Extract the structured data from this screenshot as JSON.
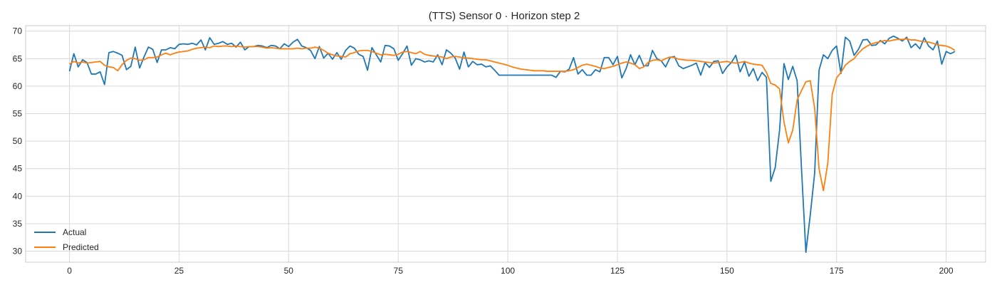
{
  "chart_data": {
    "type": "line",
    "title": "(TTS) Sensor 0 · Horizon step 2",
    "xlabel": "",
    "ylabel": "",
    "xlim": [
      -10,
      209
    ],
    "ylim": [
      28,
      71
    ],
    "x_ticks": [
      0,
      25,
      50,
      75,
      100,
      125,
      150,
      175,
      200
    ],
    "y_ticks": [
      30,
      35,
      40,
      45,
      50,
      55,
      60,
      65,
      70
    ],
    "grid": true,
    "legend_position": "lower-left",
    "colors": {
      "Actual": "#1f77b4",
      "Predicted": "#ff7f0e"
    },
    "series": [
      {
        "name": "Actual",
        "values": [
          62.7,
          65.9,
          63.5,
          64.8,
          64.3,
          62.2,
          62.2,
          62.6,
          60.3,
          66.1,
          66.3,
          66.0,
          65.6,
          63.0,
          63.6,
          67.1,
          63.3,
          65.3,
          67.1,
          66.7,
          64.3,
          66.6,
          66.6,
          67.0,
          66.8,
          67.6,
          67.7,
          67.6,
          67.8,
          67.5,
          68.4,
          66.6,
          68.8,
          67.6,
          67.8,
          68.1,
          67.6,
          67.8,
          67.1,
          68.0,
          66.6,
          67.2,
          67.2,
          67.4,
          67.3,
          67.0,
          67.4,
          67.3,
          66.8,
          67.7,
          67.2,
          68.0,
          68.5,
          67.3,
          67.0,
          66.5,
          65.0,
          67.2,
          65.1,
          66.0,
          64.9,
          66.1,
          64.9,
          66.5,
          67.3,
          66.9,
          65.8,
          65.4,
          62.9,
          67.0,
          65.7,
          64.4,
          67.4,
          67.3,
          66.8,
          64.7,
          65.9,
          67.3,
          63.8,
          65.0,
          64.8,
          64.4,
          64.6,
          64.4,
          65.7,
          63.9,
          66.6,
          66.0,
          65.1,
          63.1,
          66.2,
          63.5,
          64.5,
          63.9,
          64.0,
          63.5,
          63.7,
          62.9,
          62.0,
          62.0,
          62.0,
          62.0,
          62.0,
          62.0,
          62.0,
          62.0,
          62.0,
          62.0,
          62.0,
          62.0,
          62.0,
          61.6,
          62.7,
          62.6,
          63.1,
          65.2,
          62.2,
          63.0,
          62.0,
          62.0,
          63.0,
          62.6,
          65.2,
          65.2,
          63.9,
          65.4,
          61.5,
          63.2,
          65.7,
          63.9,
          65.6,
          63.7,
          63.7,
          66.5,
          65.0,
          64.6,
          63.5,
          65.2,
          65.4,
          63.7,
          63.2,
          63.5,
          63.8,
          64.2,
          62.0,
          64.3,
          63.4,
          64.5,
          64.6,
          62.3,
          63.5,
          64.3,
          65.6,
          62.6,
          64.4,
          61.8,
          63.2,
          61.0,
          62.5,
          61.6,
          42.7,
          45.2,
          52.0,
          64.1,
          61.2,
          63.6,
          61.0,
          45.0,
          29.8,
          36.6,
          44.2,
          62.9,
          65.7,
          65.0,
          66.5,
          67.3,
          62.3,
          68.9,
          68.2,
          65.6,
          66.7,
          68.4,
          68.5,
          67.4,
          67.5,
          68.3,
          67.7,
          68.7,
          69.1,
          68.7,
          68.2,
          68.9,
          67.0,
          67.7,
          66.8,
          68.8,
          67.3,
          66.6,
          68.2,
          64.0,
          66.3,
          65.9,
          66.3
        ]
      },
      {
        "name": "Predicted",
        "values": [
          64.0,
          64.5,
          64.2,
          64.4,
          64.2,
          64.3,
          64.4,
          64.5,
          63.8,
          63.5,
          63.4,
          62.8,
          63.9,
          64.7,
          65.1,
          65.0,
          64.7,
          64.8,
          65.2,
          65.2,
          65.3,
          65.7,
          66.0,
          65.7,
          66.0,
          66.2,
          66.3,
          66.4,
          66.7,
          66.9,
          67.0,
          67.1,
          67.0,
          67.3,
          67.2,
          67.3,
          67.3,
          67.2,
          67.3,
          67.2,
          67.1,
          67.2,
          67.2,
          67.2,
          67.1,
          66.9,
          67.0,
          66.9,
          66.8,
          66.8,
          66.8,
          66.8,
          66.9,
          66.8,
          66.9,
          66.9,
          67.1,
          66.9,
          66.5,
          66.0,
          65.7,
          65.5,
          65.4,
          65.3,
          65.9,
          66.1,
          66.4,
          66.5,
          66.5,
          66.3,
          66.0,
          65.7,
          65.8,
          65.7,
          65.6,
          65.8,
          66.2,
          66.3,
          66.1,
          65.9,
          66.3,
          65.8,
          65.6,
          65.5,
          65.4,
          65.3,
          65.0,
          65.3,
          65.4,
          65.3,
          65.1,
          65.1,
          65.0,
          64.9,
          64.8,
          64.8,
          64.6,
          64.4,
          64.2,
          64.0,
          63.8,
          63.5,
          63.3,
          63.1,
          63.0,
          62.9,
          62.8,
          62.8,
          62.8,
          62.7,
          62.7,
          62.7,
          62.7,
          62.7,
          62.8,
          63.0,
          63.4,
          63.8,
          64.0,
          63.8,
          63.6,
          63.3,
          63.2,
          63.4,
          63.6,
          63.9,
          64.2,
          64.4,
          64.2,
          63.9,
          63.2,
          63.5,
          64.3,
          64.7,
          64.8,
          64.6,
          65.0,
          65.3,
          65.2,
          64.9,
          64.8,
          64.7,
          64.7,
          64.6,
          64.5,
          64.4,
          64.3,
          64.2,
          64.3,
          64.4,
          64.5,
          64.3,
          64.2,
          64.3,
          64.5,
          64.2,
          64.0,
          63.9,
          63.8,
          62.5,
          60.5,
          60.2,
          59.5,
          53.5,
          49.7,
          52.0,
          57.5,
          59.2,
          60.8,
          61.0,
          56.0,
          45.0,
          41.0,
          46.0,
          58.5,
          61.5,
          62.5,
          63.8,
          64.5,
          65.0,
          66.0,
          66.8,
          67.3,
          67.7,
          67.9,
          68.1,
          68.3,
          68.2,
          68.4,
          68.5,
          68.5,
          68.6,
          68.4,
          68.4,
          68.2,
          68.1,
          68.0,
          67.8,
          67.5,
          67.4,
          67.3,
          67.0,
          66.5
        ]
      }
    ]
  }
}
